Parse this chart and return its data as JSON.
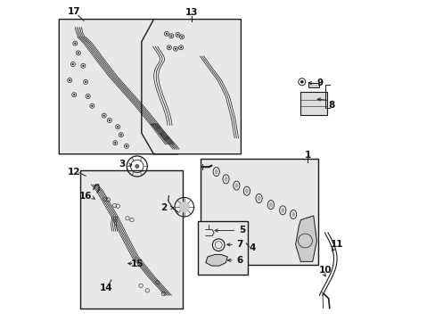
{
  "bg_color": "#ffffff",
  "box_fill": "#e8e8e8",
  "line_color": "#1a1a1a",
  "label_color": "#111111"
}
